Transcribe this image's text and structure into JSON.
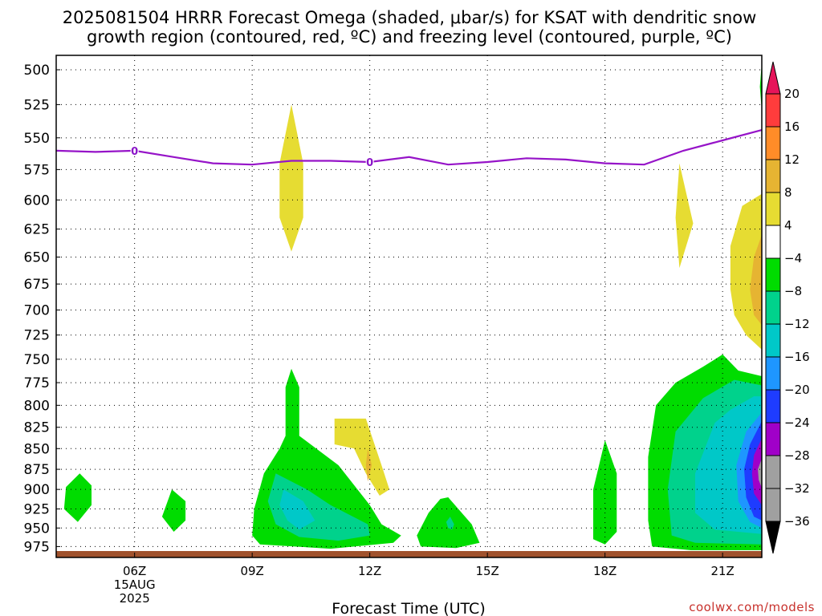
{
  "chart_data": {
    "type": "heatmap",
    "title_line1": "2025081504 HRRR Forecast Omega (shaded, μbar/s) for KSAT with dendritic snow",
    "title_line2": "growth region (contoured, red, ºC) and freezing level (contoured, purple, ºC)",
    "xlabel": "Forecast Time (UTC)",
    "x_ticks": [
      {
        "hour": 6,
        "label": "06Z",
        "sub1": "15AUG",
        "sub2": "2025"
      },
      {
        "hour": 9,
        "label": "09Z"
      },
      {
        "hour": 12,
        "label": "12Z"
      },
      {
        "hour": 15,
        "label": "15Z"
      },
      {
        "hour": 18,
        "label": "18Z"
      },
      {
        "hour": 21,
        "label": "21Z"
      }
    ],
    "xlim": [
      4,
      22
    ],
    "y_ticks": [
      500,
      525,
      550,
      575,
      600,
      625,
      650,
      675,
      700,
      725,
      750,
      775,
      800,
      825,
      850,
      875,
      900,
      925,
      950,
      975
    ],
    "ylim": [
      490,
      990
    ],
    "y_scale": "log-pressure",
    "grid": true,
    "colorbar": {
      "ticks": [
        "20",
        "16",
        "12",
        "8",
        "4",
        "−4",
        "−8",
        "−12",
        "−16",
        "−20",
        "−24",
        "−28",
        "−32",
        "−36"
      ],
      "colors": [
        "#ff3c3c",
        "#ff8c28",
        "#e6b432",
        "#e6dc32",
        "#ffffff",
        "#00dc00",
        "#00d28c",
        "#00c8c8",
        "#1e96ff",
        "#1e3cff",
        "#a000c8",
        "#a0a0a0"
      ],
      "top_arrow_color": "#e6145a",
      "bottom_arrow_color": "#000000"
    },
    "freezing_level": {
      "label": "0",
      "color": "#9614c8",
      "points": [
        [
          4.0,
          560
        ],
        [
          5.0,
          561
        ],
        [
          6.0,
          560
        ],
        [
          7.0,
          565
        ],
        [
          8.0,
          570
        ],
        [
          9.0,
          571
        ],
        [
          10.0,
          568
        ],
        [
          11.0,
          568
        ],
        [
          12.0,
          569
        ],
        [
          13.0,
          565
        ],
        [
          14.0,
          571
        ],
        [
          15.0,
          569
        ],
        [
          16.0,
          566
        ],
        [
          17.0,
          567
        ],
        [
          18.0,
          570
        ],
        [
          19.0,
          571
        ],
        [
          20.0,
          560
        ],
        [
          21.0,
          552
        ],
        [
          22.0,
          544
        ]
      ],
      "label_hours": [
        6.0,
        12.0
      ]
    },
    "omega_regions": [
      {
        "color": "#e6dc32",
        "points": [
          [
            10.0,
            525
          ],
          [
            10.3,
            570
          ],
          [
            10.3,
            615
          ],
          [
            10.0,
            645
          ],
          [
            9.7,
            615
          ],
          [
            9.7,
            570
          ]
        ]
      },
      {
        "color": "#e6dc32",
        "points": [
          [
            19.9,
            570
          ],
          [
            20.25,
            620
          ],
          [
            19.9,
            660
          ],
          [
            19.8,
            615
          ]
        ]
      },
      {
        "color": "#00dc00",
        "points": [
          [
            22.0,
            495
          ],
          [
            22.0,
            530
          ],
          [
            21.95,
            512
          ]
        ]
      },
      {
        "color": "#e6dc32",
        "points": [
          [
            22.0,
            595
          ],
          [
            21.5,
            605
          ],
          [
            21.2,
            640
          ],
          [
            21.2,
            680
          ],
          [
            21.3,
            705
          ],
          [
            21.6,
            725
          ],
          [
            22.0,
            740
          ]
        ]
      },
      {
        "color": "#e6b432",
        "points": [
          [
            22.0,
            630
          ],
          [
            21.8,
            650
          ],
          [
            21.7,
            680
          ],
          [
            21.8,
            705
          ],
          [
            22.0,
            715
          ]
        ]
      },
      {
        "color": "#e6dc32",
        "points": [
          [
            11.1,
            815
          ],
          [
            11.9,
            815
          ],
          [
            12.3,
            870
          ],
          [
            12.5,
            900
          ],
          [
            12.25,
            908
          ],
          [
            11.9,
            880
          ],
          [
            11.6,
            850
          ],
          [
            11.1,
            845
          ]
        ]
      },
      {
        "color": "#e6b432",
        "points": [
          [
            11.95,
            850
          ],
          [
            12.05,
            870
          ],
          [
            11.95,
            890
          ],
          [
            11.9,
            870
          ]
        ]
      },
      {
        "color": "#00dc00",
        "points": [
          [
            4.6,
            880
          ],
          [
            4.9,
            895
          ],
          [
            4.9,
            920
          ],
          [
            4.55,
            942
          ],
          [
            4.2,
            925
          ],
          [
            4.25,
            897
          ]
        ]
      },
      {
        "color": "#00dc00",
        "points": [
          [
            6.95,
            900
          ],
          [
            7.3,
            915
          ],
          [
            7.3,
            940
          ],
          [
            7.0,
            955
          ],
          [
            6.7,
            935
          ]
        ]
      },
      {
        "color": "#00dc00",
        "points": [
          [
            10.0,
            760
          ],
          [
            10.2,
            780
          ],
          [
            10.2,
            835
          ],
          [
            11.2,
            870
          ],
          [
            12.0,
            920
          ],
          [
            12.3,
            945
          ],
          [
            12.8,
            960
          ],
          [
            12.6,
            970
          ],
          [
            11.0,
            978
          ],
          [
            9.2,
            972
          ],
          [
            9.0,
            960
          ],
          [
            9.05,
            925
          ],
          [
            9.3,
            880
          ],
          [
            9.7,
            850
          ],
          [
            9.85,
            835
          ],
          [
            9.85,
            780
          ]
        ]
      },
      {
        "color": "#00d28c",
        "points": [
          [
            9.6,
            880
          ],
          [
            10.4,
            900
          ],
          [
            11.0,
            920
          ],
          [
            11.95,
            945
          ],
          [
            12.0,
            960
          ],
          [
            11.2,
            967
          ],
          [
            10.2,
            962
          ],
          [
            9.6,
            945
          ],
          [
            9.4,
            915
          ]
        ]
      },
      {
        "color": "#00c8c8",
        "points": [
          [
            9.8,
            900
          ],
          [
            10.3,
            915
          ],
          [
            10.6,
            940
          ],
          [
            10.2,
            952
          ],
          [
            9.9,
            940
          ],
          [
            9.7,
            920
          ]
        ]
      },
      {
        "color": "#00dc00",
        "points": [
          [
            14.0,
            910
          ],
          [
            14.6,
            945
          ],
          [
            14.8,
            970
          ],
          [
            14.2,
            977
          ],
          [
            13.3,
            975
          ],
          [
            13.2,
            960
          ],
          [
            13.5,
            930
          ],
          [
            13.8,
            912
          ]
        ]
      },
      {
        "color": "#00d28c",
        "points": [
          [
            14.05,
            935
          ],
          [
            14.15,
            945
          ],
          [
            14.1,
            952
          ],
          [
            14.0,
            950
          ],
          [
            13.95,
            942
          ]
        ]
      },
      {
        "color": "#00dc00",
        "points": [
          [
            18.0,
            840
          ],
          [
            18.3,
            880
          ],
          [
            18.3,
            955
          ],
          [
            18.0,
            972
          ],
          [
            17.7,
            965
          ],
          [
            17.7,
            900
          ]
        ]
      },
      {
        "color": "#00dc00",
        "points": [
          [
            21.0,
            745
          ],
          [
            21.4,
            762
          ],
          [
            22.0,
            768
          ],
          [
            22.0,
            980
          ],
          [
            20.2,
            980
          ],
          [
            19.2,
            975
          ],
          [
            19.1,
            940
          ],
          [
            19.1,
            860
          ],
          [
            19.3,
            800
          ],
          [
            19.8,
            775
          ],
          [
            20.5,
            758
          ]
        ]
      },
      {
        "color": "#00d28c",
        "points": [
          [
            21.3,
            772
          ],
          [
            22.0,
            778
          ],
          [
            22.0,
            972
          ],
          [
            20.3,
            970
          ],
          [
            19.7,
            960
          ],
          [
            19.6,
            900
          ],
          [
            19.8,
            830
          ],
          [
            20.5,
            792
          ]
        ]
      },
      {
        "color": "#00c8c8",
        "points": [
          [
            21.8,
            790
          ],
          [
            22.0,
            790
          ],
          [
            22.0,
            958
          ],
          [
            20.8,
            952
          ],
          [
            20.3,
            930
          ],
          [
            20.3,
            880
          ],
          [
            20.8,
            820
          ],
          [
            21.2,
            805
          ]
        ]
      },
      {
        "color": "#1e96ff",
        "points": [
          [
            22.0,
            808
          ],
          [
            21.6,
            830
          ],
          [
            21.35,
            870
          ],
          [
            21.4,
            915
          ],
          [
            21.7,
            942
          ],
          [
            22.0,
            950
          ]
        ]
      },
      {
        "color": "#1e3cff",
        "points": [
          [
            22.0,
            818
          ],
          [
            21.7,
            845
          ],
          [
            21.55,
            875
          ],
          [
            21.6,
            910
          ],
          [
            21.8,
            935
          ],
          [
            22.0,
            940
          ]
        ]
      },
      {
        "color": "#a000c8",
        "points": [
          [
            22.0,
            838
          ],
          [
            21.8,
            858
          ],
          [
            21.75,
            880
          ],
          [
            21.8,
            905
          ],
          [
            22.0,
            920
          ]
        ]
      },
      {
        "color": "#a0a0a0",
        "points": [
          [
            22.0,
            862
          ],
          [
            21.9,
            875
          ],
          [
            21.92,
            888
          ],
          [
            22.0,
            898
          ]
        ]
      }
    ],
    "ground_color": "#a0522d"
  },
  "credit": "coolwx.com/models"
}
